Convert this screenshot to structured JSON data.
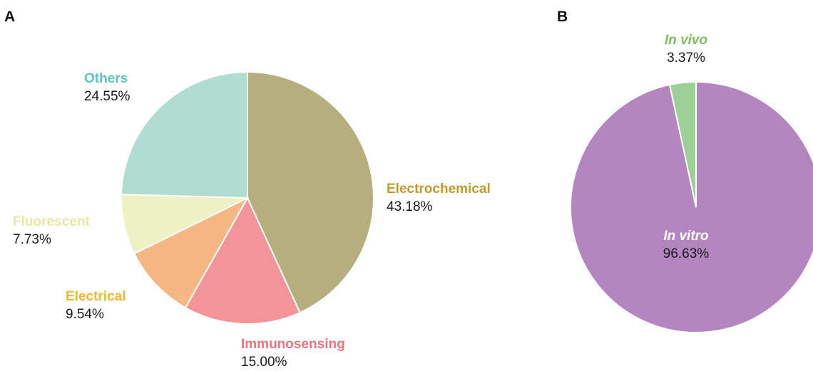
{
  "chart_data": [
    {
      "type": "pie",
      "panel": "A",
      "slices": [
        {
          "label": "Electrochemical",
          "value": 43.18,
          "value_label": "43.18%",
          "color": "#b5ae7d",
          "label_color": "#c39a32"
        },
        {
          "label": "Immunosensing",
          "value": 15.0,
          "value_label": "15.00%",
          "color": "#f39598",
          "label_color": "#ea7480"
        },
        {
          "label": "Electrical",
          "value": 9.54,
          "value_label": "9.54%",
          "color": "#f6b784",
          "label_color": "#f0b92c"
        },
        {
          "label": "Fluorescent",
          "value": 7.73,
          "value_label": "7.73%",
          "color": "#eef1c3",
          "label_color": "#e6e8a6"
        },
        {
          "label": "Others",
          "value": 24.55,
          "value_label": "24.55%",
          "color": "#b0ddd0",
          "label_color": "#5ec6b8"
        }
      ]
    },
    {
      "type": "pie",
      "panel": "B",
      "slices": [
        {
          "label": "In vitro",
          "value": 96.63,
          "value_label": "96.63%",
          "color": "#b386c0",
          "label_color": "#ffffff"
        },
        {
          "label": "In vivo",
          "value": 3.37,
          "value_label": "3.37%",
          "color": "#9dd097",
          "label_color": "#7fbf5e"
        }
      ]
    }
  ]
}
